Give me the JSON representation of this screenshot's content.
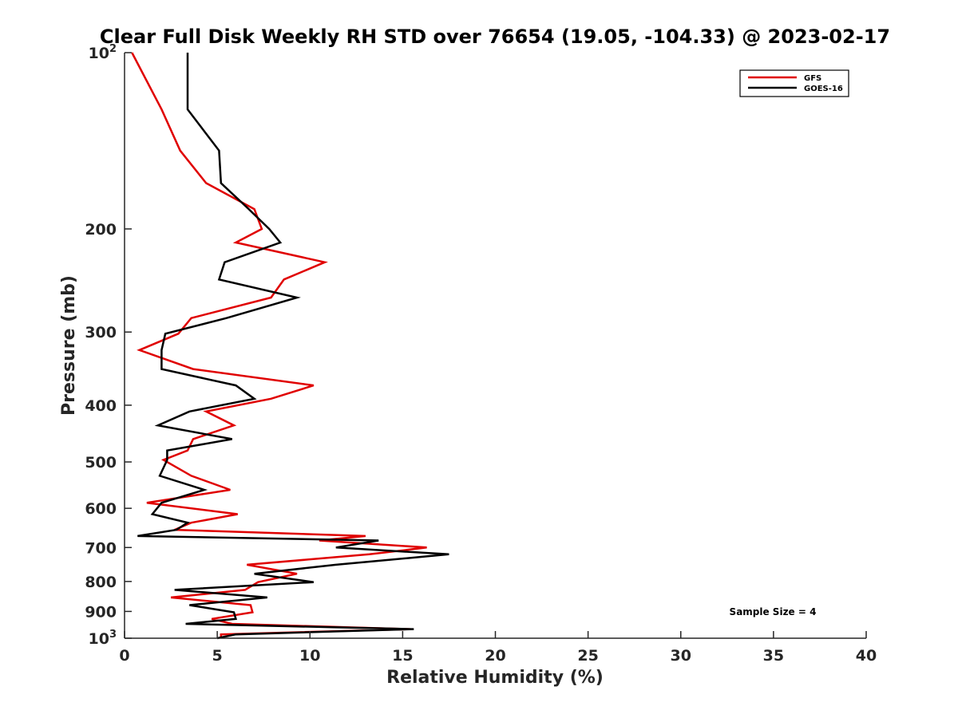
{
  "chart_data": {
    "type": "line",
    "title": "Clear Full Disk Weekly RH STD over 76654 (19.05, -104.33) @ 2023-02-17",
    "xlabel": "Relative Humidity (%)",
    "ylabel": "Pressure (mb)",
    "xlim": [
      0,
      40
    ],
    "ylim": [
      100,
      1000
    ],
    "yscale": "log",
    "y_reversed": true,
    "grid": false,
    "legend_position": "top-right",
    "x_ticks": [
      0,
      5,
      10,
      15,
      20,
      25,
      30,
      35,
      40
    ],
    "x_tick_labels": [
      "0",
      "5",
      "10",
      "15",
      "20",
      "25",
      "30",
      "35",
      "40"
    ],
    "y_ticks": [
      100,
      200,
      300,
      400,
      500,
      600,
      700,
      800,
      900,
      1000
    ],
    "y_tick_labels": [
      {
        "base": "10",
        "exp": "2"
      },
      {
        "base": "200",
        "exp": ""
      },
      {
        "base": "300",
        "exp": ""
      },
      {
        "base": "400",
        "exp": ""
      },
      {
        "base": "500",
        "exp": ""
      },
      {
        "base": "600",
        "exp": ""
      },
      {
        "base": "700",
        "exp": ""
      },
      {
        "base": "800",
        "exp": ""
      },
      {
        "base": "900",
        "exp": ""
      },
      {
        "base": "10",
        "exp": "3"
      }
    ],
    "annotation": "Sample Size = 4",
    "series": [
      {
        "name": "GFS",
        "color": "#e00000",
        "points": [
          [
            0.4,
            100
          ],
          [
            2.0,
            125
          ],
          [
            3.0,
            147
          ],
          [
            4.4,
            167
          ],
          [
            7.0,
            185
          ],
          [
            7.4,
            200
          ],
          [
            6.0,
            211
          ],
          [
            10.8,
            228
          ],
          [
            8.6,
            244
          ],
          [
            7.9,
            262
          ],
          [
            3.6,
            284
          ],
          [
            2.9,
            302
          ],
          [
            0.8,
            322
          ],
          [
            3.7,
            347
          ],
          [
            10.2,
            370
          ],
          [
            7.9,
            390
          ],
          [
            4.4,
            410
          ],
          [
            5.9,
            433
          ],
          [
            3.7,
            457
          ],
          [
            3.4,
            478
          ],
          [
            2.1,
            496
          ],
          [
            3.6,
            528
          ],
          [
            5.7,
            558
          ],
          [
            1.2,
            587
          ],
          [
            6.1,
            614
          ],
          [
            3.6,
            635
          ],
          [
            2.7,
            653
          ],
          [
            13.0,
            669
          ],
          [
            10.5,
            681
          ],
          [
            16.3,
            700
          ],
          [
            13.2,
            719
          ],
          [
            6.6,
            749
          ],
          [
            9.3,
            776
          ],
          [
            7.2,
            802
          ],
          [
            6.5,
            827
          ],
          [
            2.5,
            852
          ],
          [
            6.8,
            878
          ],
          [
            6.9,
            903
          ],
          [
            4.7,
            927
          ],
          [
            5.8,
            945
          ],
          [
            15.4,
            965
          ],
          [
            5.2,
            985
          ],
          [
            5.2,
            1000
          ]
        ]
      },
      {
        "name": "GOES-16",
        "color": "#000000",
        "points": [
          [
            3.4,
            100
          ],
          [
            3.4,
            125
          ],
          [
            5.1,
            147
          ],
          [
            5.2,
            167
          ],
          [
            6.7,
            185
          ],
          [
            7.8,
            200
          ],
          [
            8.4,
            211
          ],
          [
            5.4,
            228
          ],
          [
            5.1,
            244
          ],
          [
            9.3,
            262
          ],
          [
            5.5,
            284
          ],
          [
            2.2,
            302
          ],
          [
            2.0,
            322
          ],
          [
            2.0,
            347
          ],
          [
            6.0,
            370
          ],
          [
            7.0,
            390
          ],
          [
            3.5,
            410
          ],
          [
            1.8,
            433
          ],
          [
            5.8,
            457
          ],
          [
            2.3,
            478
          ],
          [
            2.3,
            496
          ],
          [
            1.9,
            528
          ],
          [
            4.3,
            558
          ],
          [
            2.0,
            587
          ],
          [
            1.5,
            614
          ],
          [
            3.4,
            635
          ],
          [
            2.8,
            653
          ],
          [
            0.7,
            669
          ],
          [
            13.7,
            681
          ],
          [
            11.4,
            700
          ],
          [
            17.5,
            719
          ],
          [
            11.4,
            749
          ],
          [
            7.0,
            776
          ],
          [
            10.2,
            802
          ],
          [
            2.7,
            827
          ],
          [
            7.7,
            852
          ],
          [
            3.5,
            878
          ],
          [
            5.9,
            903
          ],
          [
            6.0,
            927
          ],
          [
            3.3,
            945
          ],
          [
            15.6,
            965
          ],
          [
            6.0,
            985
          ],
          [
            5.0,
            1000
          ]
        ]
      }
    ]
  }
}
